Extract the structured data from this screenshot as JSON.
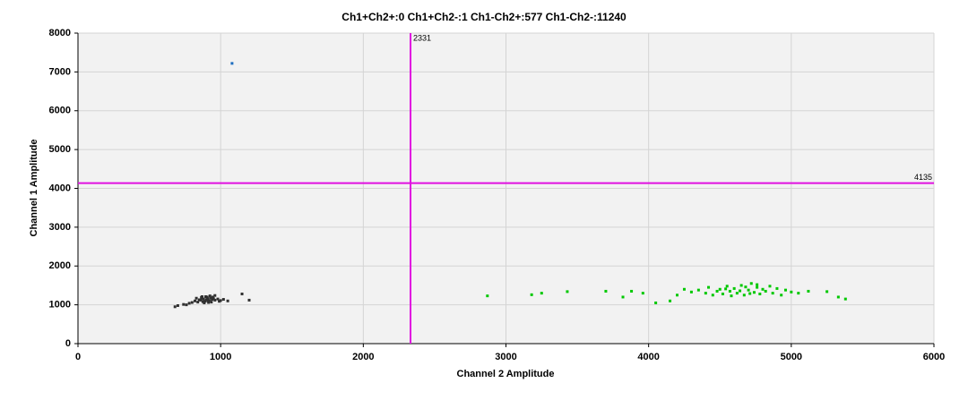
{
  "chart_data": {
    "type": "scatter",
    "title": "Ch1+Ch2+:0  Ch1+Ch2-:1  Ch1-Ch2+:577  Ch1-Ch2-:11240",
    "x_label": "Channel 2 Amplitude",
    "y_label": "Channel 1 Amplitude",
    "xlim": [
      0,
      6000
    ],
    "ylim": [
      0,
      8000
    ],
    "xticks": [
      0,
      1000,
      2000,
      3000,
      4000,
      5000,
      6000
    ],
    "yticks": [
      0,
      1000,
      2000,
      3000,
      4000,
      5000,
      6000,
      7000,
      8000
    ],
    "grid": true,
    "thresholds": {
      "x": 2331,
      "y": 4135,
      "color": "#e010e0"
    },
    "series": [
      {
        "color": "#303030",
        "x": [
          900,
          880,
          920,
          860,
          940,
          910,
          870,
          950,
          890,
          930,
          850,
          960,
          820,
          980,
          905,
          875,
          915,
          895,
          935,
          865,
          1000,
          800,
          780,
          1020,
          760,
          1050,
          700,
          680,
          740,
          960,
          1150,
          1200,
          990,
          840,
          925,
          885,
          870,
          945,
          910,
          830
        ],
        "values": [
          1130,
          1150,
          1110,
          1120,
          1140,
          1100,
          1170,
          1160,
          1090,
          1180,
          1130,
          1120,
          1100,
          1150,
          1200,
          1080,
          1060,
          1210,
          1070,
          1190,
          1110,
          1060,
          1040,
          1140,
          1000,
          1100,
          980,
          950,
          1010,
          1240,
          1280,
          1120,
          1090,
          1070,
          1230,
          1050,
          1210,
          1200,
          1160,
          1170
        ]
      },
      {
        "color": "#00c800",
        "x": [
          2870,
          3180,
          3250,
          3430,
          3700,
          3820,
          3880,
          3960,
          4050,
          4150,
          4200,
          4250,
          4300,
          4350,
          4400,
          4420,
          4450,
          4480,
          4500,
          4520,
          4550,
          4570,
          4600,
          4620,
          4650,
          4670,
          4700,
          4720,
          4740,
          4760,
          4780,
          4800,
          4820,
          4850,
          4870,
          4900,
          4930,
          4960,
          5000,
          5050,
          5120,
          5250,
          5330,
          5380,
          4580,
          4680,
          4710,
          4760,
          4640,
          4540
        ],
        "values": [
          1230,
          1260,
          1300,
          1340,
          1350,
          1200,
          1350,
          1300,
          1050,
          1100,
          1250,
          1400,
          1330,
          1380,
          1300,
          1450,
          1250,
          1350,
          1400,
          1280,
          1480,
          1350,
          1420,
          1300,
          1500,
          1250,
          1380,
          1550,
          1320,
          1450,
          1280,
          1400,
          1350,
          1480,
          1300,
          1420,
          1250,
          1380,
          1330,
          1300,
          1350,
          1340,
          1200,
          1150,
          1230,
          1460,
          1290,
          1520,
          1360,
          1410
        ]
      },
      {
        "color": "#1f6fc0",
        "x": [
          1080
        ],
        "values": [
          7220
        ]
      }
    ]
  }
}
